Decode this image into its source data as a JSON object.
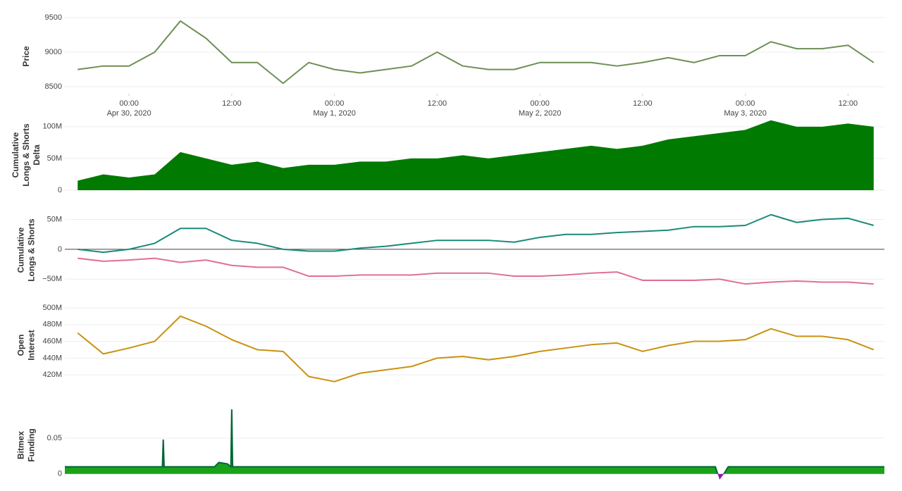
{
  "chart_data": [
    {
      "type": "line",
      "ylabel": [
        "Price"
      ],
      "color": "#6e8f55",
      "x": [
        "2020-04-29T18:00",
        "2020-04-29T21:00",
        "2020-04-30T00:00",
        "2020-04-30T03:00",
        "2020-04-30T06:00",
        "2020-04-30T09:00",
        "2020-04-30T12:00",
        "2020-04-30T15:00",
        "2020-04-30T18:00",
        "2020-04-30T21:00",
        "2020-05-01T00:00",
        "2020-05-01T03:00",
        "2020-05-01T06:00",
        "2020-05-01T09:00",
        "2020-05-01T12:00",
        "2020-05-01T15:00",
        "2020-05-01T18:00",
        "2020-05-01T21:00",
        "2020-05-02T00:00",
        "2020-05-02T03:00",
        "2020-05-02T06:00",
        "2020-05-02T09:00",
        "2020-05-02T12:00",
        "2020-05-02T15:00",
        "2020-05-02T18:00",
        "2020-05-02T21:00",
        "2020-05-03T00:00",
        "2020-05-03T03:00",
        "2020-05-03T06:00",
        "2020-05-03T09:00",
        "2020-05-03T12:00",
        "2020-05-03T15:00"
      ],
      "series": [
        {
          "color": "#6e8f55",
          "values": [
            8750,
            8800,
            8800,
            9000,
            9450,
            9200,
            8850,
            8850,
            8550,
            8850,
            8750,
            8700,
            8750,
            8800,
            9000,
            8800,
            8750,
            8750,
            8850,
            8850,
            8850,
            8800,
            8850,
            8920,
            8850,
            8950,
            8950,
            9150,
            9050,
            9050,
            9100,
            8850
          ]
        }
      ],
      "xlim": [
        "2020-04-29T16:30",
        "2020-05-03T16:15"
      ],
      "xticks": [
        {
          "value": "2020-04-30T00:00",
          "label": [
            "00:00",
            "Apr 30, 2020"
          ]
        },
        {
          "value": "2020-04-30T12:00",
          "label": [
            "12:00"
          ]
        },
        {
          "value": "2020-05-01T00:00",
          "label": [
            "00:00",
            "May 1, 2020"
          ]
        },
        {
          "value": "2020-05-01T12:00",
          "label": [
            "12:00"
          ]
        },
        {
          "value": "2020-05-02T00:00",
          "label": [
            "00:00",
            "May 2, 2020"
          ]
        },
        {
          "value": "2020-05-02T12:00",
          "label": [
            "12:00"
          ]
        },
        {
          "value": "2020-05-03T00:00",
          "label": [
            "00:00",
            "May 3, 2020"
          ]
        },
        {
          "value": "2020-05-03T12:00",
          "label": [
            "12:00"
          ]
        }
      ],
      "ylim": [
        8400,
        9550
      ],
      "yticks": [
        8500,
        9000,
        9500
      ],
      "grid": true
    },
    {
      "type": "area",
      "ylabel": [
        "Cumulative",
        "Longs & Shorts",
        "Delta"
      ],
      "x": [
        "2020-04-29T18:00",
        "2020-04-29T21:00",
        "2020-04-30T00:00",
        "2020-04-30T03:00",
        "2020-04-30T06:00",
        "2020-04-30T09:00",
        "2020-04-30T12:00",
        "2020-04-30T15:00",
        "2020-04-30T18:00",
        "2020-04-30T21:00",
        "2020-05-01T00:00",
        "2020-05-01T03:00",
        "2020-05-01T06:00",
        "2020-05-01T09:00",
        "2020-05-01T12:00",
        "2020-05-01T15:00",
        "2020-05-01T18:00",
        "2020-05-01T21:00",
        "2020-05-02T00:00",
        "2020-05-02T03:00",
        "2020-05-02T06:00",
        "2020-05-02T09:00",
        "2020-05-02T12:00",
        "2020-05-02T15:00",
        "2020-05-02T18:00",
        "2020-05-02T21:00",
        "2020-05-03T00:00",
        "2020-05-03T03:00",
        "2020-05-03T06:00",
        "2020-05-03T09:00",
        "2020-05-03T12:00",
        "2020-05-03T15:00"
      ],
      "series": [
        {
          "color": "#007a00",
          "values": [
            15000000,
            25000000,
            20000000,
            25000000,
            60000000,
            50000000,
            40000000,
            45000000,
            35000000,
            40000000,
            40000000,
            45000000,
            45000000,
            50000000,
            50000000,
            55000000,
            50000000,
            55000000,
            60000000,
            65000000,
            70000000,
            65000000,
            70000000,
            80000000,
            85000000,
            90000000,
            95000000,
            110000000,
            100000000,
            100000000,
            105000000,
            100000000
          ]
        }
      ],
      "xlim": [
        "2020-04-29T16:30",
        "2020-05-03T16:15"
      ],
      "ylim": [
        0,
        112000000
      ],
      "yticks": [
        0,
        {
          "value": 50000000,
          "label": "50M"
        },
        {
          "value": 100000000,
          "label": "100M"
        }
      ],
      "grid": true
    },
    {
      "type": "line",
      "ylabel": [
        "Cumulative",
        "Longs & Shorts"
      ],
      "zeroline": true,
      "x": [
        "2020-04-29T18:00",
        "2020-04-29T21:00",
        "2020-04-30T00:00",
        "2020-04-30T03:00",
        "2020-04-30T06:00",
        "2020-04-30T09:00",
        "2020-04-30T12:00",
        "2020-04-30T15:00",
        "2020-04-30T18:00",
        "2020-04-30T21:00",
        "2020-05-01T00:00",
        "2020-05-01T03:00",
        "2020-05-01T06:00",
        "2020-05-01T09:00",
        "2020-05-01T12:00",
        "2020-05-01T15:00",
        "2020-05-01T18:00",
        "2020-05-01T21:00",
        "2020-05-02T00:00",
        "2020-05-02T03:00",
        "2020-05-02T06:00",
        "2020-05-02T09:00",
        "2020-05-02T12:00",
        "2020-05-02T15:00",
        "2020-05-02T18:00",
        "2020-05-02T21:00",
        "2020-05-03T00:00",
        "2020-05-03T03:00",
        "2020-05-03T06:00",
        "2020-05-03T09:00",
        "2020-05-03T12:00",
        "2020-05-03T15:00"
      ],
      "series": [
        {
          "color": "#1a8a78",
          "values": [
            0,
            -5000000,
            0,
            10000000,
            35000000,
            35000000,
            15000000,
            10000000,
            0,
            -3000000,
            -3000000,
            2000000,
            5000000,
            10000000,
            15000000,
            15000000,
            15000000,
            12000000,
            20000000,
            25000000,
            25000000,
            28000000,
            30000000,
            32000000,
            38000000,
            38000000,
            40000000,
            58000000,
            45000000,
            50000000,
            52000000,
            40000000
          ]
        },
        {
          "color": "#e07090",
          "values": [
            -15000000,
            -20000000,
            -18000000,
            -15000000,
            -22000000,
            -18000000,
            -27000000,
            -30000000,
            -30000000,
            -45000000,
            -45000000,
            -43000000,
            -43000000,
            -43000000,
            -40000000,
            -40000000,
            -40000000,
            -45000000,
            -45000000,
            -43000000,
            -40000000,
            -38000000,
            -52000000,
            -52000000,
            -52000000,
            -50000000,
            -58000000,
            -55000000,
            -53000000,
            -55000000,
            -55000000,
            -58000000
          ]
        }
      ],
      "xlim": [
        "2020-04-29T16:30",
        "2020-05-03T16:15"
      ],
      "ylim": [
        -65000000,
        63000000
      ],
      "yticks": [
        {
          "value": -50000000,
          "label": "−50M"
        },
        0,
        {
          "value": 50000000,
          "label": "50M"
        }
      ],
      "grid": true
    },
    {
      "type": "line",
      "ylabel": [
        "Open",
        "Interest"
      ],
      "x": [
        "2020-04-29T18:00",
        "2020-04-29T21:00",
        "2020-04-30T00:00",
        "2020-04-30T03:00",
        "2020-04-30T06:00",
        "2020-04-30T09:00",
        "2020-04-30T12:00",
        "2020-04-30T15:00",
        "2020-04-30T18:00",
        "2020-04-30T21:00",
        "2020-05-01T00:00",
        "2020-05-01T03:00",
        "2020-05-01T06:00",
        "2020-05-01T09:00",
        "2020-05-01T12:00",
        "2020-05-01T15:00",
        "2020-05-01T18:00",
        "2020-05-01T21:00",
        "2020-05-02T00:00",
        "2020-05-02T03:00",
        "2020-05-02T06:00",
        "2020-05-02T09:00",
        "2020-05-02T12:00",
        "2020-05-02T15:00",
        "2020-05-02T18:00",
        "2020-05-02T21:00",
        "2020-05-03T00:00",
        "2020-05-03T03:00",
        "2020-05-03T06:00",
        "2020-05-03T09:00",
        "2020-05-03T12:00",
        "2020-05-03T15:00"
      ],
      "series": [
        {
          "color": "#c8920f",
          "values": [
            470000000,
            445000000,
            452000000,
            460000000,
            490000000,
            478000000,
            462000000,
            450000000,
            448000000,
            418000000,
            412000000,
            422000000,
            426000000,
            430000000,
            440000000,
            442000000,
            438000000,
            442000000,
            448000000,
            452000000,
            456000000,
            458000000,
            448000000,
            455000000,
            460000000,
            460000000,
            462000000,
            475000000,
            466000000,
            466000000,
            462000000,
            450000000
          ]
        }
      ],
      "xlim": [
        "2020-04-29T16:30",
        "2020-05-03T16:15"
      ],
      "ylim": [
        405000000,
        505000000
      ],
      "yticks": [
        {
          "value": 420000000,
          "label": "420M"
        },
        {
          "value": 440000000,
          "label": "440M"
        },
        {
          "value": 460000000,
          "label": "460M"
        },
        {
          "value": 480000000,
          "label": "480M"
        },
        {
          "value": 500000000,
          "label": "500M"
        }
      ],
      "grid": true
    },
    {
      "type": "area",
      "ylabel": [
        "Bitmex",
        "Funding"
      ],
      "x": [
        "2020-04-29T16:30",
        "2020-04-30T03:54",
        "2020-04-30T04:00",
        "2020-04-30T04:06",
        "2020-04-30T10:00",
        "2020-04-30T10:30",
        "2020-04-30T11:30",
        "2020-04-30T11:54",
        "2020-04-30T12:00",
        "2020-04-30T12:06",
        "2020-05-02T20:30",
        "2020-05-02T21:00",
        "2020-05-02T21:30",
        "2020-05-02T22:00",
        "2020-05-03T16:15"
      ],
      "series": [
        {
          "color": "#1aa31a",
          "negative_color": "#8e1ab0",
          "values": [
            0.01,
            0.01,
            0.048,
            0.01,
            0.01,
            0.016,
            0.014,
            0.01,
            0.09,
            0.01,
            0.01,
            -0.008,
            0,
            0.01,
            0.01
          ]
        }
      ],
      "xlim": [
        "2020-04-29T16:30",
        "2020-05-03T16:15"
      ],
      "ylim": [
        -0.012,
        0.096
      ],
      "yticks": [
        0,
        0.05
      ],
      "grid": true
    }
  ]
}
